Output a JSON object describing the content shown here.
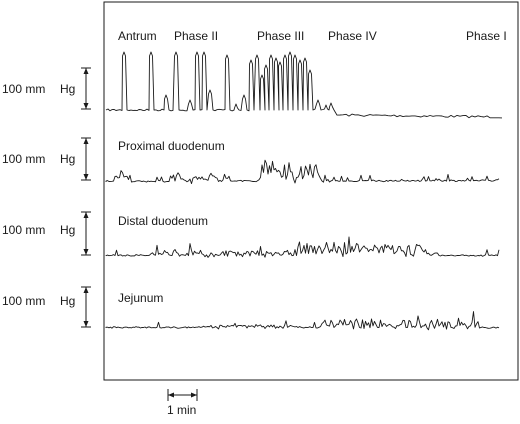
{
  "phases": [
    {
      "label": "Antrum"
    },
    {
      "label": "Phase II"
    },
    {
      "label": "Phase III"
    },
    {
      "label": "Phase IV"
    },
    {
      "label": "Phase I"
    }
  ],
  "channels": [
    {
      "name": "",
      "scale_value": "100 mm",
      "scale_unit": "Hg"
    },
    {
      "name": "Proximal duodenum",
      "scale_value": "100 mm",
      "scale_unit": "Hg"
    },
    {
      "name": "Distal duodenum",
      "scale_value": "100 mm",
      "scale_unit": "Hg"
    },
    {
      "name": "Jejunum",
      "scale_value": "100 mm",
      "scale_unit": "Hg"
    }
  ],
  "time_scale": {
    "label": "1 min"
  }
}
